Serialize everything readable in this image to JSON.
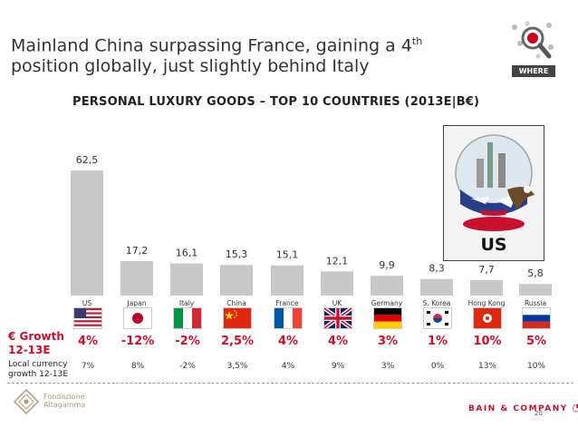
{
  "title": {
    "line1_main": "Mainland China surpassing France, gaining a 4",
    "line1_sup": "th",
    "line2": "position globally, just slightly behind Italy"
  },
  "logo": {
    "label": "WHERE",
    "icon": "magnifier-pin-icon"
  },
  "subtitle": "PERSONAL LUXURY GOODS – TOP 10 COUNTRIES (2013E|B€)",
  "chart_data": {
    "type": "bar",
    "categories": [
      "US",
      "Japan",
      "Italy",
      "China",
      "France",
      "UK",
      "Germany",
      "S. Korea",
      "Hong Kong",
      "Russia"
    ],
    "values": [
      62.5,
      17.2,
      16.1,
      15.3,
      15.1,
      12.1,
      9.9,
      8.3,
      7.7,
      5.8
    ],
    "value_labels": [
      "62,5",
      "17,2",
      "16,1",
      "15,3",
      "15,1",
      "12,1",
      "9,9",
      "8,3",
      "7,7",
      "5,8"
    ],
    "ylim": [
      0,
      62.5
    ],
    "bar_color": "#c8c8c8",
    "grid": false
  },
  "callout": {
    "label": "US",
    "icon": "snow-globe-statue-of-liberty-icon"
  },
  "flags": [
    {
      "country": "US",
      "icon": "us-flag-icon"
    },
    {
      "country": "Japan",
      "icon": "japan-flag-icon"
    },
    {
      "country": "Italy",
      "icon": "italy-flag-icon"
    },
    {
      "country": "China",
      "icon": "china-flag-icon"
    },
    {
      "country": "France",
      "icon": "france-flag-icon"
    },
    {
      "country": "UK",
      "icon": "uk-flag-icon"
    },
    {
      "country": "Germany",
      "icon": "germany-flag-icon"
    },
    {
      "country": "S. Korea",
      "icon": "south-korea-flag-icon"
    },
    {
      "country": "Hong Kong",
      "icon": "hong-kong-flag-icon"
    },
    {
      "country": "Russia",
      "icon": "russia-flag-icon"
    }
  ],
  "growth": {
    "label_line1": "€ Growth",
    "label_line2": "12-13E",
    "values": [
      "4%",
      "-12%",
      "-2%",
      "2,5%",
      "4%",
      "4%",
      "3%",
      "1%",
      "10%",
      "5%"
    ],
    "color": "#c8102e"
  },
  "local_growth": {
    "label_line1": "Local currency",
    "label_line2": "growth 12-13E",
    "values": [
      "7%",
      "8%",
      "-2%",
      "3,5%",
      "4%",
      "9%",
      "3%",
      "0%",
      "13%",
      "10%"
    ]
  },
  "footer": {
    "org_line1": "Fondazione",
    "org_line2": "Altagamma",
    "company": "BAIN & COMPANY",
    "page": "20"
  }
}
